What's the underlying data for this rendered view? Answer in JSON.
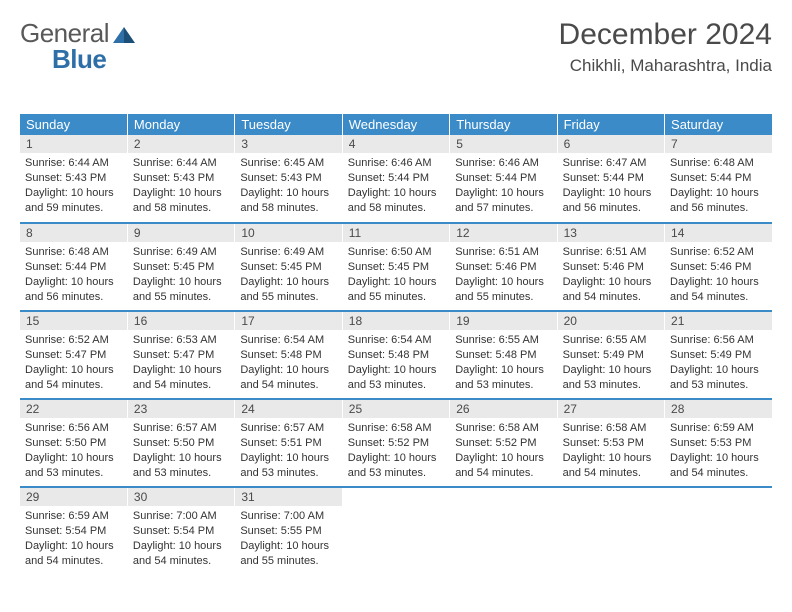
{
  "logo": {
    "word1": "General",
    "word2": "Blue"
  },
  "title": "December 2024",
  "location": "Chikhli, Maharashtra, India",
  "colors": {
    "header_bg": "#3b8bc9",
    "header_text": "#ffffff",
    "daynum_bg": "#e9e9e9",
    "text": "#333333",
    "rule": "#3b8bc9",
    "logo_gray": "#595959",
    "logo_blue": "#2f6fa7"
  },
  "weekdays": [
    "Sunday",
    "Monday",
    "Tuesday",
    "Wednesday",
    "Thursday",
    "Friday",
    "Saturday"
  ],
  "weeks": [
    [
      {
        "n": "1",
        "sr": "Sunrise: 6:44 AM",
        "ss": "Sunset: 5:43 PM",
        "dl": "Daylight: 10 hours and 59 minutes."
      },
      {
        "n": "2",
        "sr": "Sunrise: 6:44 AM",
        "ss": "Sunset: 5:43 PM",
        "dl": "Daylight: 10 hours and 58 minutes."
      },
      {
        "n": "3",
        "sr": "Sunrise: 6:45 AM",
        "ss": "Sunset: 5:43 PM",
        "dl": "Daylight: 10 hours and 58 minutes."
      },
      {
        "n": "4",
        "sr": "Sunrise: 6:46 AM",
        "ss": "Sunset: 5:44 PM",
        "dl": "Daylight: 10 hours and 58 minutes."
      },
      {
        "n": "5",
        "sr": "Sunrise: 6:46 AM",
        "ss": "Sunset: 5:44 PM",
        "dl": "Daylight: 10 hours and 57 minutes."
      },
      {
        "n": "6",
        "sr": "Sunrise: 6:47 AM",
        "ss": "Sunset: 5:44 PM",
        "dl": "Daylight: 10 hours and 56 minutes."
      },
      {
        "n": "7",
        "sr": "Sunrise: 6:48 AM",
        "ss": "Sunset: 5:44 PM",
        "dl": "Daylight: 10 hours and 56 minutes."
      }
    ],
    [
      {
        "n": "8",
        "sr": "Sunrise: 6:48 AM",
        "ss": "Sunset: 5:44 PM",
        "dl": "Daylight: 10 hours and 56 minutes."
      },
      {
        "n": "9",
        "sr": "Sunrise: 6:49 AM",
        "ss": "Sunset: 5:45 PM",
        "dl": "Daylight: 10 hours and 55 minutes."
      },
      {
        "n": "10",
        "sr": "Sunrise: 6:49 AM",
        "ss": "Sunset: 5:45 PM",
        "dl": "Daylight: 10 hours and 55 minutes."
      },
      {
        "n": "11",
        "sr": "Sunrise: 6:50 AM",
        "ss": "Sunset: 5:45 PM",
        "dl": "Daylight: 10 hours and 55 minutes."
      },
      {
        "n": "12",
        "sr": "Sunrise: 6:51 AM",
        "ss": "Sunset: 5:46 PM",
        "dl": "Daylight: 10 hours and 55 minutes."
      },
      {
        "n": "13",
        "sr": "Sunrise: 6:51 AM",
        "ss": "Sunset: 5:46 PM",
        "dl": "Daylight: 10 hours and 54 minutes."
      },
      {
        "n": "14",
        "sr": "Sunrise: 6:52 AM",
        "ss": "Sunset: 5:46 PM",
        "dl": "Daylight: 10 hours and 54 minutes."
      }
    ],
    [
      {
        "n": "15",
        "sr": "Sunrise: 6:52 AM",
        "ss": "Sunset: 5:47 PM",
        "dl": "Daylight: 10 hours and 54 minutes."
      },
      {
        "n": "16",
        "sr": "Sunrise: 6:53 AM",
        "ss": "Sunset: 5:47 PM",
        "dl": "Daylight: 10 hours and 54 minutes."
      },
      {
        "n": "17",
        "sr": "Sunrise: 6:54 AM",
        "ss": "Sunset: 5:48 PM",
        "dl": "Daylight: 10 hours and 54 minutes."
      },
      {
        "n": "18",
        "sr": "Sunrise: 6:54 AM",
        "ss": "Sunset: 5:48 PM",
        "dl": "Daylight: 10 hours and 53 minutes."
      },
      {
        "n": "19",
        "sr": "Sunrise: 6:55 AM",
        "ss": "Sunset: 5:48 PM",
        "dl": "Daylight: 10 hours and 53 minutes."
      },
      {
        "n": "20",
        "sr": "Sunrise: 6:55 AM",
        "ss": "Sunset: 5:49 PM",
        "dl": "Daylight: 10 hours and 53 minutes."
      },
      {
        "n": "21",
        "sr": "Sunrise: 6:56 AM",
        "ss": "Sunset: 5:49 PM",
        "dl": "Daylight: 10 hours and 53 minutes."
      }
    ],
    [
      {
        "n": "22",
        "sr": "Sunrise: 6:56 AM",
        "ss": "Sunset: 5:50 PM",
        "dl": "Daylight: 10 hours and 53 minutes."
      },
      {
        "n": "23",
        "sr": "Sunrise: 6:57 AM",
        "ss": "Sunset: 5:50 PM",
        "dl": "Daylight: 10 hours and 53 minutes."
      },
      {
        "n": "24",
        "sr": "Sunrise: 6:57 AM",
        "ss": "Sunset: 5:51 PM",
        "dl": "Daylight: 10 hours and 53 minutes."
      },
      {
        "n": "25",
        "sr": "Sunrise: 6:58 AM",
        "ss": "Sunset: 5:52 PM",
        "dl": "Daylight: 10 hours and 53 minutes."
      },
      {
        "n": "26",
        "sr": "Sunrise: 6:58 AM",
        "ss": "Sunset: 5:52 PM",
        "dl": "Daylight: 10 hours and 54 minutes."
      },
      {
        "n": "27",
        "sr": "Sunrise: 6:58 AM",
        "ss": "Sunset: 5:53 PM",
        "dl": "Daylight: 10 hours and 54 minutes."
      },
      {
        "n": "28",
        "sr": "Sunrise: 6:59 AM",
        "ss": "Sunset: 5:53 PM",
        "dl": "Daylight: 10 hours and 54 minutes."
      }
    ],
    [
      {
        "n": "29",
        "sr": "Sunrise: 6:59 AM",
        "ss": "Sunset: 5:54 PM",
        "dl": "Daylight: 10 hours and 54 minutes."
      },
      {
        "n": "30",
        "sr": "Sunrise: 7:00 AM",
        "ss": "Sunset: 5:54 PM",
        "dl": "Daylight: 10 hours and 54 minutes."
      },
      {
        "n": "31",
        "sr": "Sunrise: 7:00 AM",
        "ss": "Sunset: 5:55 PM",
        "dl": "Daylight: 10 hours and 55 minutes."
      },
      {
        "empty": true
      },
      {
        "empty": true
      },
      {
        "empty": true
      },
      {
        "empty": true
      }
    ]
  ]
}
